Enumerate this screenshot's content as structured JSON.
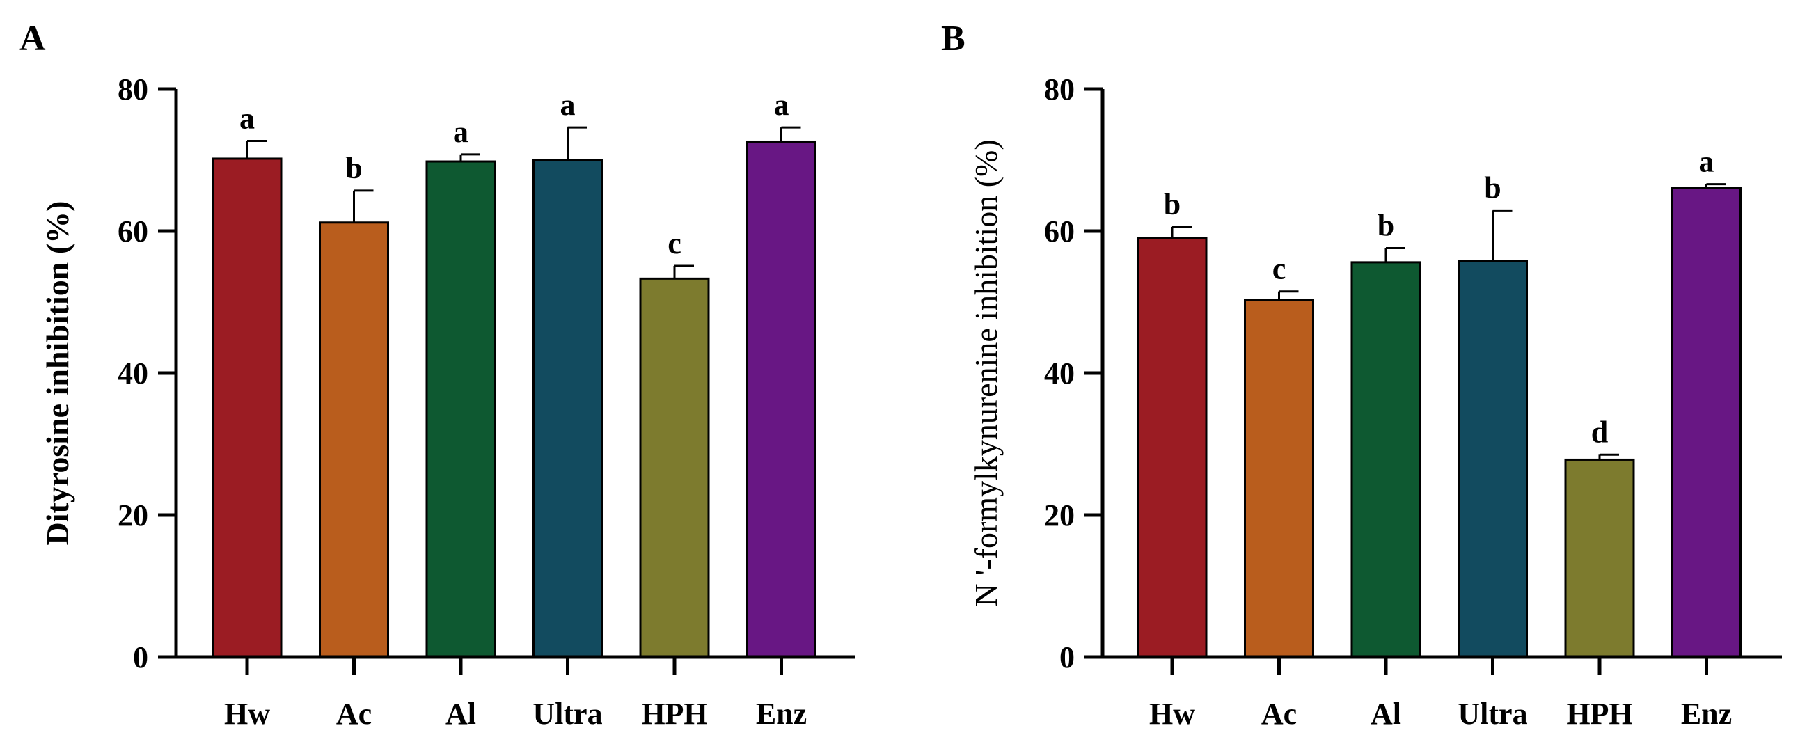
{
  "chart_data": [
    {
      "type": "bar",
      "panel": "A",
      "title": "",
      "xlabel": "",
      "ylabel": "Dityrosine inhibition (%)",
      "ylim": [
        0,
        80
      ],
      "yticks": [
        0,
        20,
        40,
        60,
        80
      ],
      "categories": [
        "Hw",
        "Ac",
        "Al",
        "Ultra",
        "HPH",
        "Enz"
      ],
      "values": [
        70.2,
        61.2,
        69.8,
        70.0,
        53.3,
        72.6
      ],
      "errors": [
        2.5,
        4.5,
        1.0,
        4.6,
        1.8,
        2.0
      ],
      "letters": [
        "a",
        "b",
        "a",
        "a",
        "c",
        "a"
      ],
      "colors": [
        "#9b1c23",
        "#b95d1d",
        "#0e5931",
        "#124b5f",
        "#7d7b2e",
        "#681784"
      ]
    },
    {
      "type": "bar",
      "panel": "B",
      "title": "",
      "xlabel": "",
      "ylabel": "N '-formylkynurenine inhibition (%)",
      "ylim": [
        0,
        80
      ],
      "yticks": [
        0,
        20,
        40,
        60,
        80
      ],
      "categories": [
        "Hw",
        "Ac",
        "Al",
        "Ultra",
        "HPH",
        "Enz"
      ],
      "values": [
        59.0,
        50.3,
        55.6,
        55.8,
        27.8,
        66.1
      ],
      "errors": [
        1.6,
        1.2,
        2.0,
        7.1,
        0.7,
        0.5
      ],
      "letters": [
        "b",
        "c",
        "b",
        "b",
        "d",
        "a"
      ],
      "colors": [
        "#9b1c23",
        "#b95d1d",
        "#0e5931",
        "#124b5f",
        "#7d7b2e",
        "#681784"
      ]
    }
  ]
}
